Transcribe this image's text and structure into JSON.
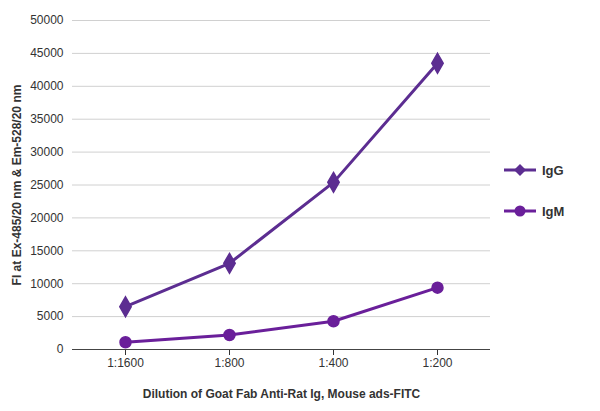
{
  "chart_data": {
    "type": "line",
    "x_label": "Dilution of Goat Fab Anti-Rat Ig, Mouse ads-FITC",
    "y_label": "FI at Ex-485/20 nm & Em-528/20 nm",
    "categories": [
      "1:1600",
      "1:800",
      "1:400",
      "1:200"
    ],
    "series": [
      {
        "name": "IgG",
        "color": "#5c2d91",
        "marker": "diamond",
        "line_style": "solid",
        "values": [
          6500,
          13100,
          25400,
          43500
        ]
      },
      {
        "name": "IgM",
        "color": "#6a1f9a",
        "marker": "circle",
        "line_style": "solid",
        "values": [
          1100,
          2200,
          4300,
          9400
        ]
      }
    ],
    "ylim": [
      0,
      50000
    ],
    "yticks": [
      0,
      5000,
      10000,
      15000,
      20000,
      25000,
      30000,
      35000,
      40000,
      45000,
      50000
    ],
    "grid": true,
    "legend": "right"
  }
}
